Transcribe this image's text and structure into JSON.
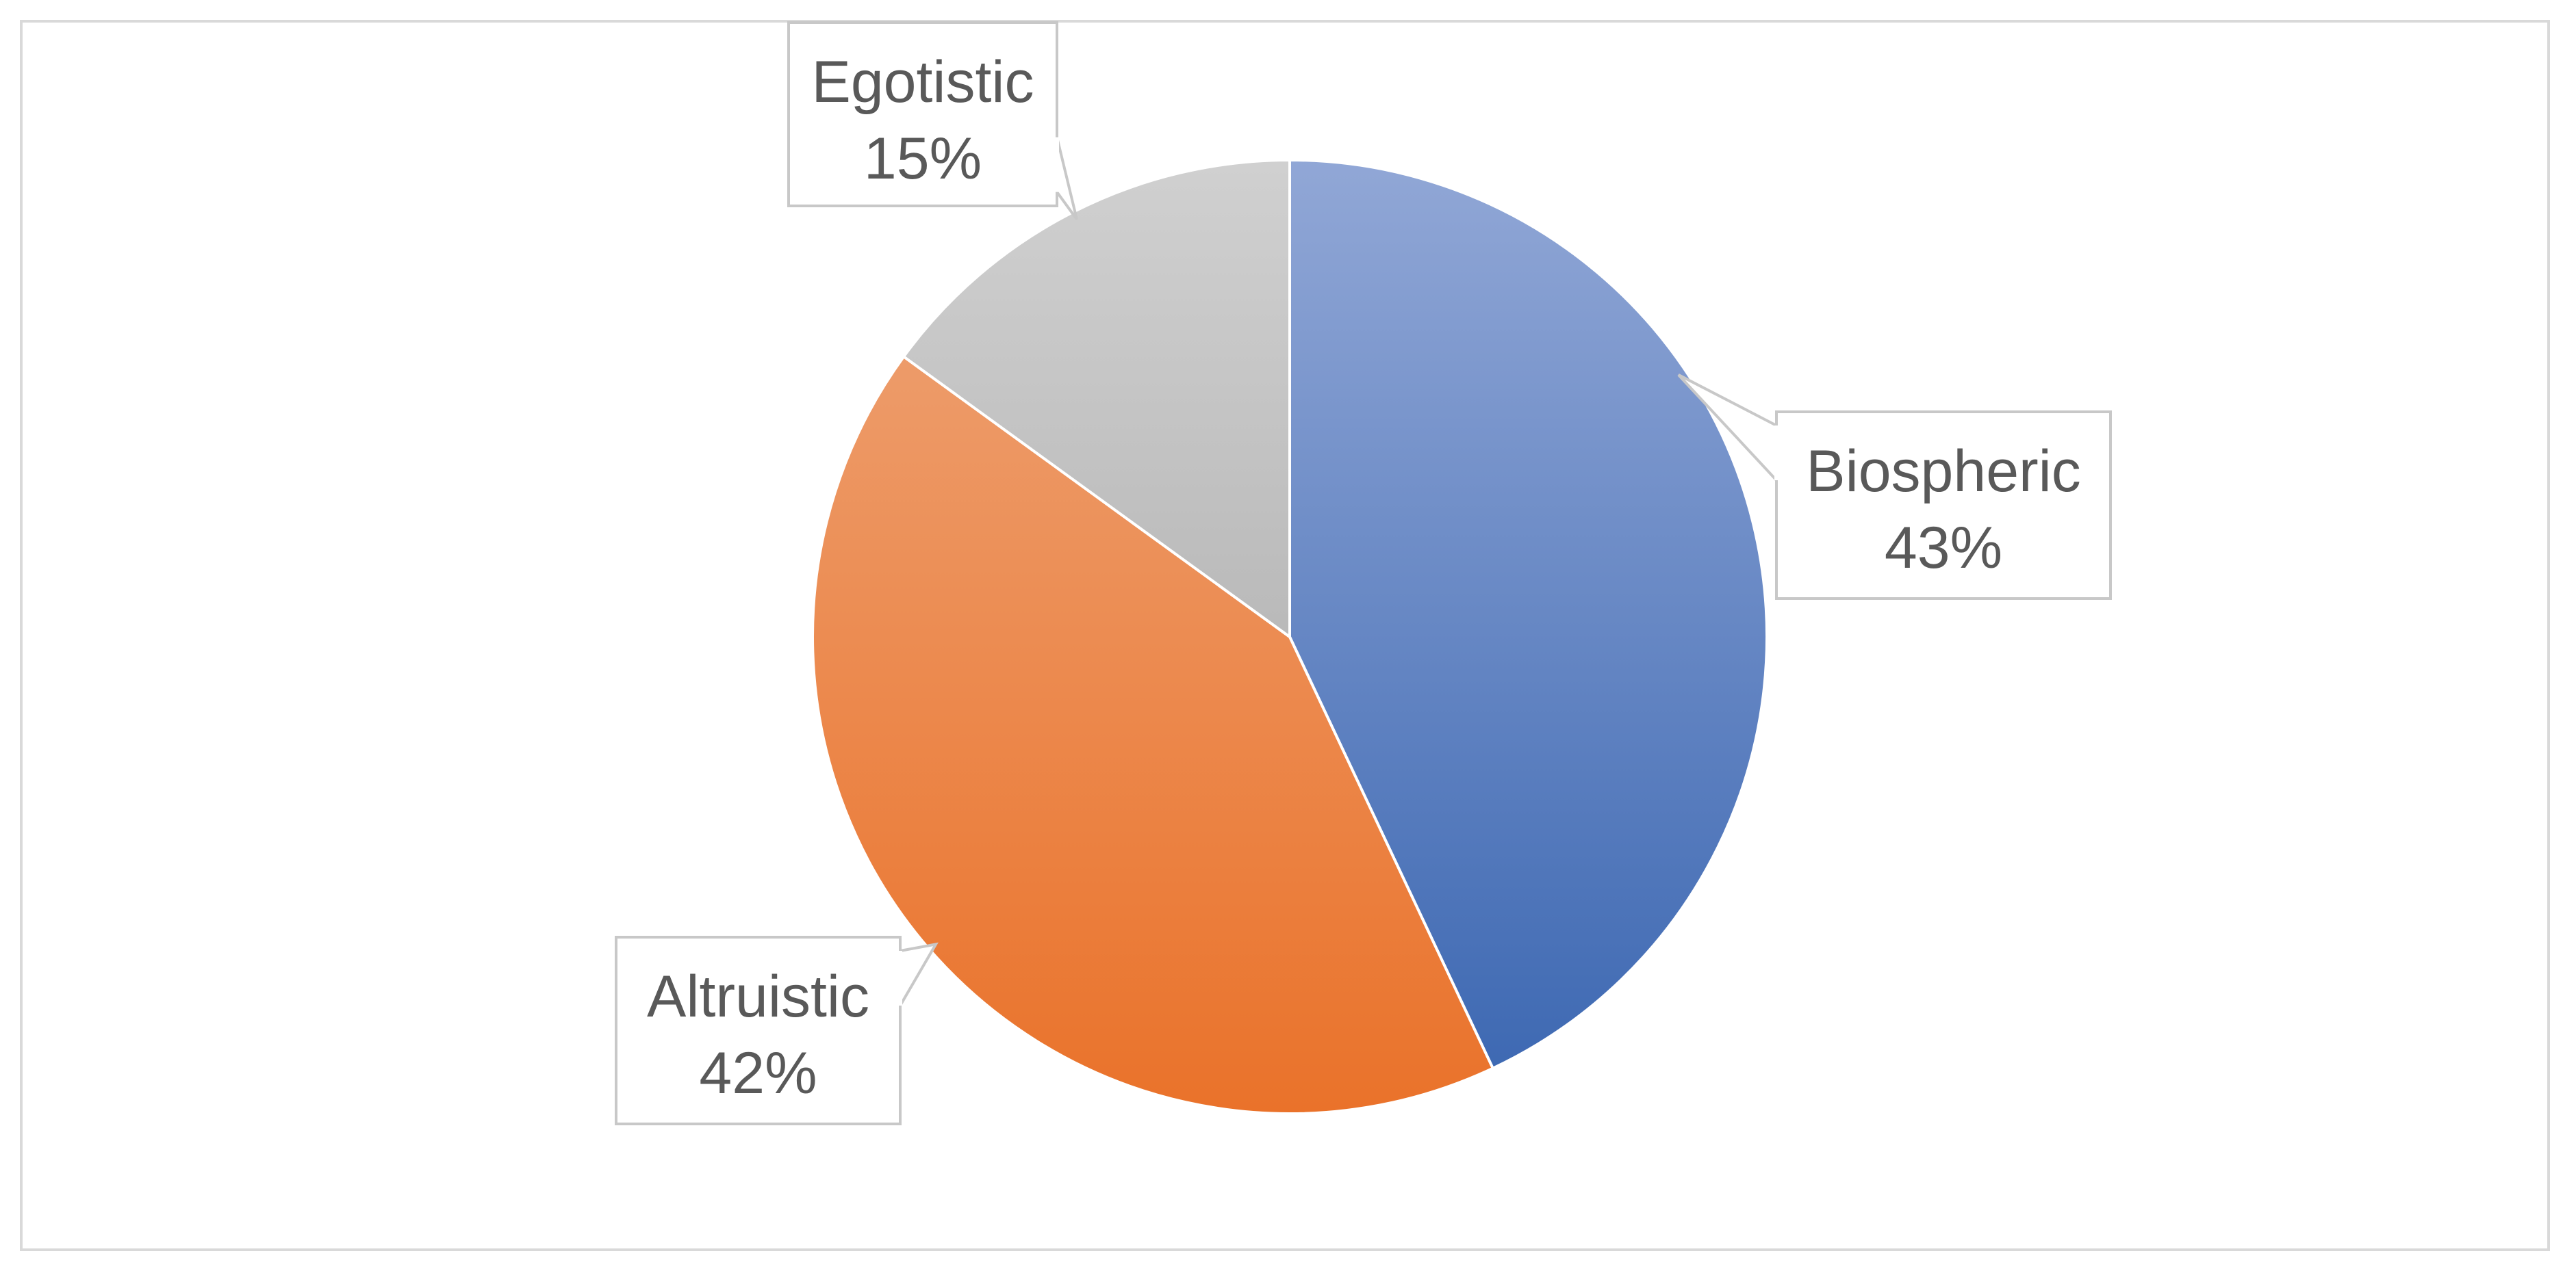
{
  "chart_data": {
    "type": "pie",
    "title": "",
    "categories": [
      "Biospheric",
      "Altruistic",
      "Egotistic"
    ],
    "values": [
      43,
      42,
      15
    ],
    "value_labels": [
      "43%",
      "42%",
      "15%"
    ],
    "unit": "%",
    "start_angle_deg": 0,
    "direction": "clockwise",
    "legend": "none",
    "label_style": "callout",
    "colors": {
      "Biospheric": {
        "light": "#91a7d6",
        "dark": "#3a66b1"
      },
      "Altruistic": {
        "light": "#eea67a",
        "dark": "#ea722a"
      },
      "Egotistic": {
        "light": "#d0d0d0",
        "dark": "#a3a3a3"
      }
    },
    "callout_border_color": "#c8c8c8",
    "frame_border_color": "#d9d9d9"
  }
}
